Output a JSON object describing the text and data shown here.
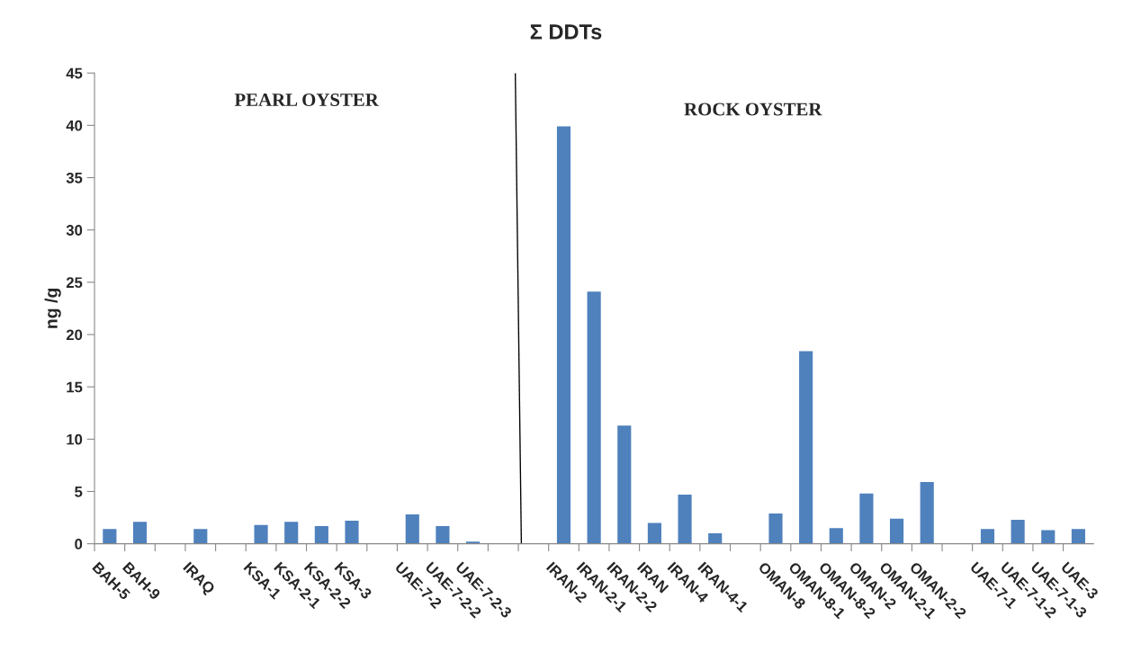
{
  "chart_data": {
    "type": "bar",
    "title": "Σ DDTs",
    "ylabel": "ng /g",
    "categories": [
      "BAH-5",
      "BAH-9",
      null,
      "IRAQ",
      null,
      "KSA-1",
      "KSA-2-1",
      "KSA-2-2",
      "KSA-3",
      null,
      "UAE-7-2",
      "UAE-7-2-2",
      "UAE-7-2-3",
      null,
      null,
      "IRAN-2",
      "IRAN-2-1",
      "IRAN-2-2",
      "IRAN",
      "IRAN-4",
      "IRAN-4-1",
      null,
      "OMAN-8",
      "OMAN-8-1",
      "OMAN-8-2",
      "OMAN-2",
      "OMAN-2-1",
      "OMAN-2-2",
      null,
      "UAE-7-1",
      "UAE-7-1-2",
      "UAE-7-1-3",
      "UAE-3"
    ],
    "values": [
      1.4,
      2.1,
      null,
      1.4,
      null,
      1.8,
      2.1,
      1.7,
      2.2,
      null,
      2.8,
      1.7,
      0.2,
      null,
      null,
      39.9,
      24.1,
      11.3,
      2.0,
      4.7,
      1.0,
      null,
      2.9,
      18.4,
      1.5,
      4.8,
      2.4,
      5.9,
      null,
      1.4,
      2.3,
      1.3,
      1.4
    ],
    "color": "#4f81bd",
    "ylim": [
      0,
      45
    ],
    "yticks": [
      0,
      5,
      10,
      15,
      20,
      25,
      30,
      35,
      40,
      45
    ],
    "annotations": [
      "PEARL OYSTER",
      "ROCK OYSTER"
    ]
  }
}
